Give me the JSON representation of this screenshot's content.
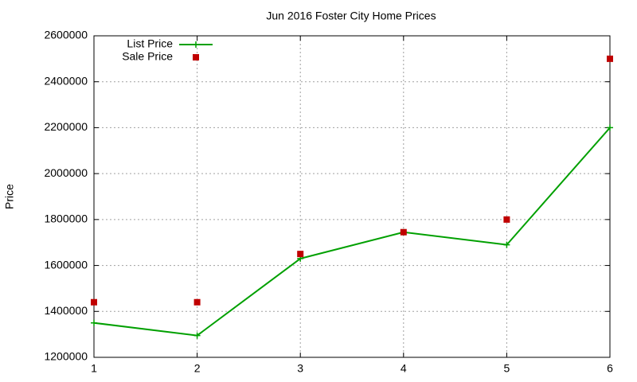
{
  "chart_data": {
    "type": "line",
    "title": "Jun 2016 Foster City Home Prices",
    "y_label": "Price",
    "x": [
      1,
      2,
      3,
      4,
      5,
      6
    ],
    "series": [
      {
        "name": "List Price",
        "color": "#00a000",
        "style": "line",
        "values": [
          1350000,
          1295000,
          1630000,
          1745000,
          1690000,
          2200000
        ]
      },
      {
        "name": "Sale Price",
        "color": "#c00000",
        "style": "points",
        "values": [
          1440000,
          1440000,
          1650000,
          1745000,
          1800000,
          2500000
        ]
      }
    ],
    "xlim": [
      1,
      6
    ],
    "xticks": [
      1,
      2,
      3,
      4,
      5,
      6
    ],
    "ylim": [
      1200000,
      2600000
    ],
    "yticks": [
      1200000,
      1400000,
      1600000,
      1800000,
      2000000,
      2200000,
      2400000,
      2600000
    ],
    "grid": true,
    "legend": "top-left"
  }
}
